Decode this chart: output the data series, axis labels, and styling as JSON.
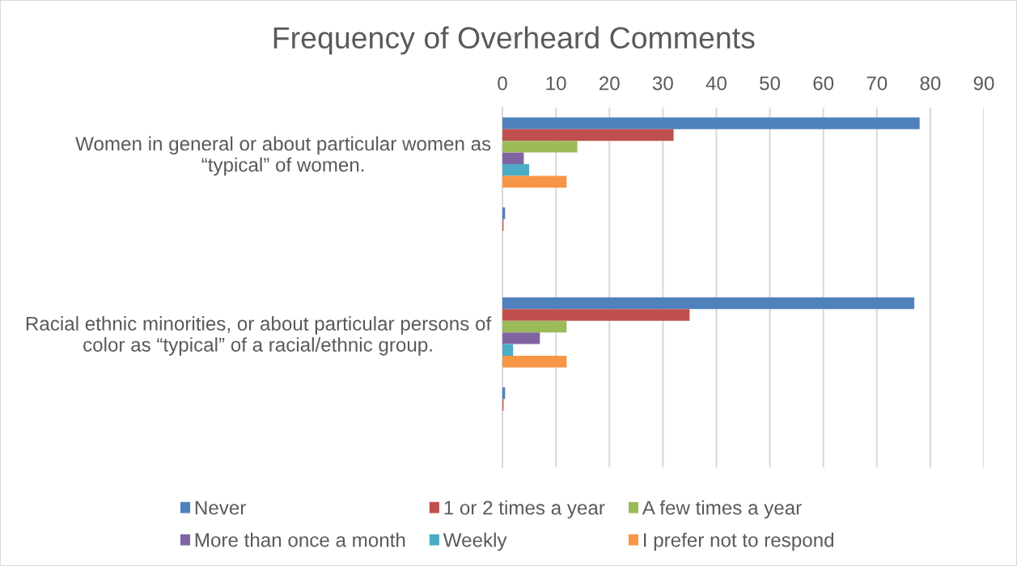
{
  "chart_data": {
    "type": "bar",
    "orientation": "horizontal",
    "title": "Frequency of Overheard Comments",
    "categories": [
      "Women in general or about particular women as “typical” of women.",
      null,
      "Racial ethnic minorities, or about particular persons of color as “typical” of a racial/ethnic group.",
      null
    ],
    "series": [
      {
        "name": "Never",
        "color": "#4f81bd",
        "values": [
          78,
          0.5,
          77,
          0.5
        ]
      },
      {
        "name": "1 or 2 times a year",
        "color": "#c0504d",
        "values": [
          32,
          0.2,
          35,
          0.2
        ]
      },
      {
        "name": "A few times a year",
        "color": "#9bbb59",
        "values": [
          14,
          null,
          12,
          null
        ]
      },
      {
        "name": "More than once a month",
        "color": "#8064a2",
        "values": [
          4,
          null,
          7,
          null
        ]
      },
      {
        "name": "Weekly",
        "color": "#4bacc6",
        "values": [
          5,
          null,
          2,
          null
        ]
      },
      {
        "name": "I prefer not to respond",
        "color": "#f79646",
        "values": [
          12,
          null,
          12,
          null
        ]
      }
    ],
    "xlim": [
      0,
      90
    ],
    "xticks": [
      0,
      10,
      20,
      30,
      40,
      50,
      60,
      70,
      80,
      90
    ],
    "grid": "x",
    "legend": "bottom"
  }
}
